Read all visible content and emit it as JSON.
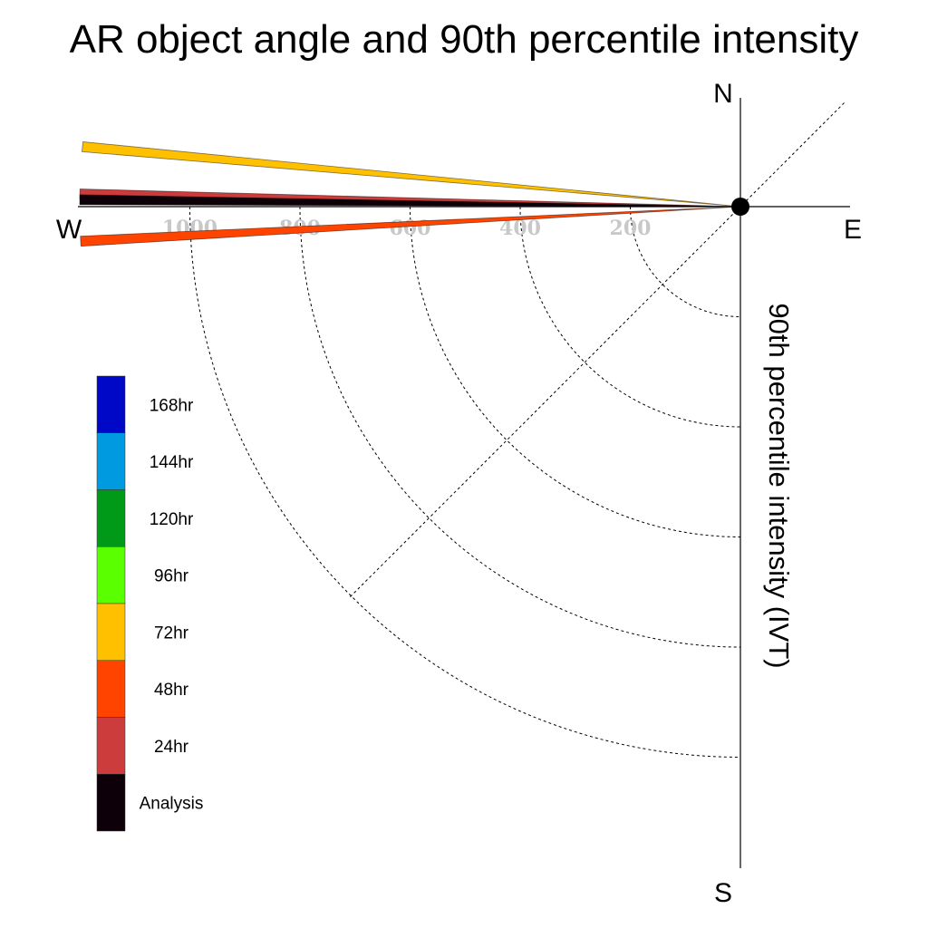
{
  "chart_data": {
    "type": "polar-vector",
    "title": "AR object angle and 90th percentile intensity",
    "ylabel": "90th percentile intensity (IVT)",
    "compass": {
      "north": "N",
      "south": "S",
      "east": "E",
      "west": "W"
    },
    "radial_ticks": [
      {
        "value": 200,
        "label": "200"
      },
      {
        "value": 400,
        "label": "400"
      },
      {
        "value": 600,
        "label": "600"
      },
      {
        "value": 800,
        "label": "800"
      },
      {
        "value": 1000,
        "label": "1000"
      }
    ],
    "radial_max": 1200,
    "diagonal_angle_deg": 45,
    "series": [
      {
        "name": "72hr",
        "color": "#ffc000",
        "intensity": 1200,
        "angle_deg": 174.8
      },
      {
        "name": "24hr",
        "color": "#cc3c3c",
        "intensity": 1200,
        "angle_deg": 178.9
      },
      {
        "name": "Analysis",
        "color": "#0d0008",
        "intensity": 1200,
        "angle_deg": 179.4
      },
      {
        "name": "48hr",
        "color": "#ff4400",
        "intensity": 1200,
        "angle_deg": 183.0
      }
    ],
    "legend": [
      {
        "label": "168hr",
        "color": "#0008c8"
      },
      {
        "label": "144hr",
        "color": "#009ae0"
      },
      {
        "label": "120hr",
        "color": "#009a18"
      },
      {
        "label": "96hr",
        "color": "#5aff00"
      },
      {
        "label": "72hr",
        "color": "#ffc000"
      },
      {
        "label": "48hr",
        "color": "#ff4400"
      },
      {
        "label": "24hr",
        "color": "#cc3c3c"
      },
      {
        "label": "Analysis",
        "color": "#0d0008"
      }
    ]
  }
}
